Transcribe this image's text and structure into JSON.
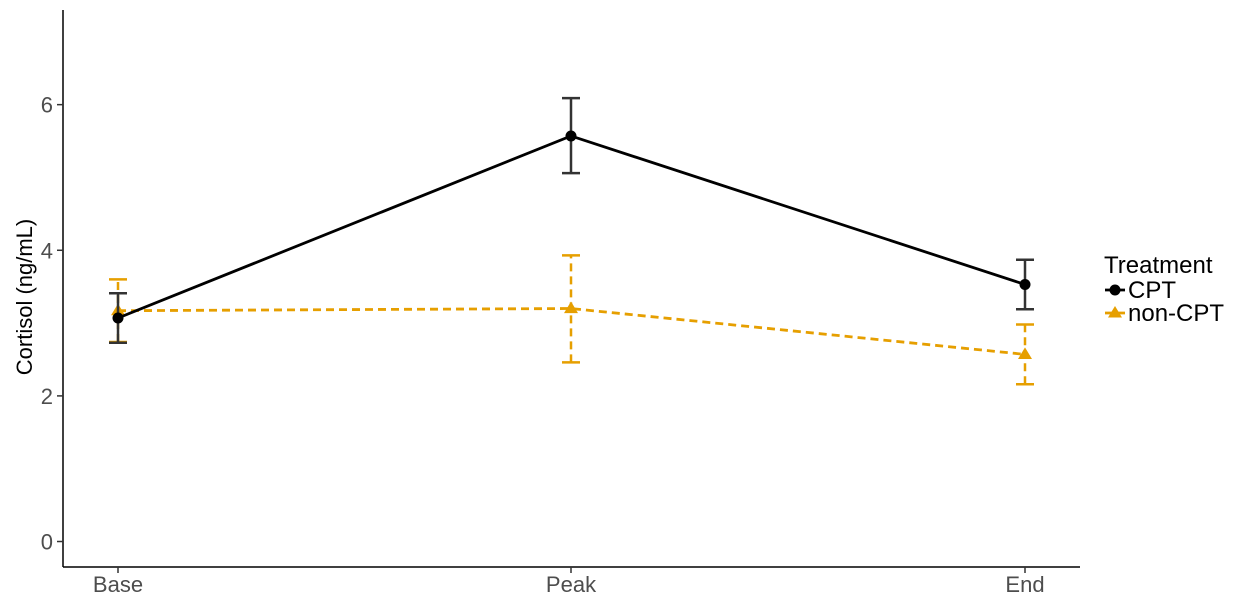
{
  "chart_data": {
    "type": "line",
    "categories": [
      "Base",
      "Peak",
      "End"
    ],
    "ylabel": "Cortisol (ng/mL)",
    "xlabel": "",
    "ylim": [
      -0.35,
      7.3
    ],
    "yticks": [
      0,
      2,
      4,
      6
    ],
    "grid": false,
    "legend": {
      "title": "Treatment",
      "position": "right"
    },
    "series": [
      {
        "name": "CPT",
        "values": [
          3.07,
          5.57,
          3.53
        ],
        "err_low": [
          2.73,
          5.06,
          3.19
        ],
        "err_high": [
          3.41,
          6.09,
          3.87
        ],
        "color": "#000000",
        "marker": "circle",
        "dash": "solid"
      },
      {
        "name": "non-CPT",
        "values": [
          3.17,
          3.2,
          2.57
        ],
        "err_low": [
          2.74,
          2.46,
          2.16
        ],
        "err_high": [
          3.6,
          3.93,
          2.98
        ],
        "color": "#E69F00",
        "marker": "triangle",
        "dash": "dashed"
      }
    ]
  }
}
